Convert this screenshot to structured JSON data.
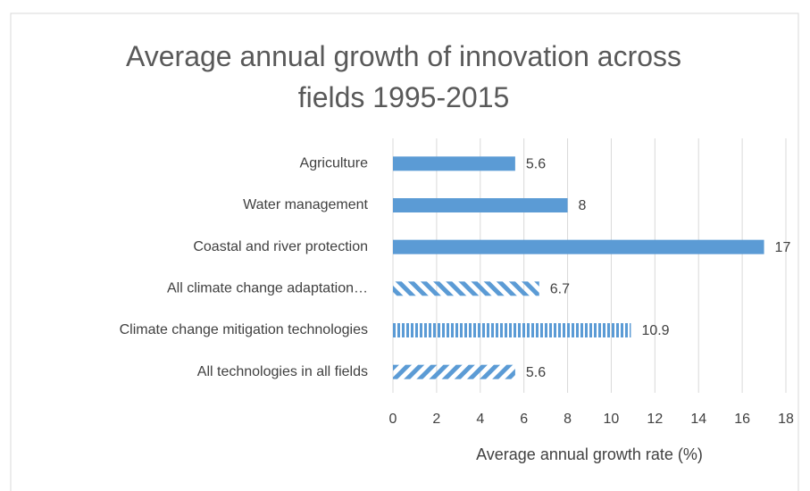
{
  "chart_data": {
    "type": "bar",
    "orientation": "horizontal",
    "title": "Average annual growth of innovation across fields 1995-2015",
    "x_label": "Average annual growth rate (%)",
    "categories": [
      "Agriculture",
      "Water management",
      "Coastal and river protection",
      "All climate change adaptation…",
      "Climate change mitigation technologies",
      "All technologies in all fields"
    ],
    "values": [
      5.6,
      8,
      17,
      6.7,
      10.9,
      5.6
    ],
    "patterns": [
      "solid",
      "solid",
      "solid",
      "diagonal-down",
      "vertical",
      "diagonal-up"
    ],
    "color": "#5b9bd5",
    "xlim": [
      0,
      18
    ],
    "xticks": [
      0,
      2,
      4,
      6,
      8,
      10,
      12,
      14,
      16,
      18
    ],
    "grid": true
  }
}
